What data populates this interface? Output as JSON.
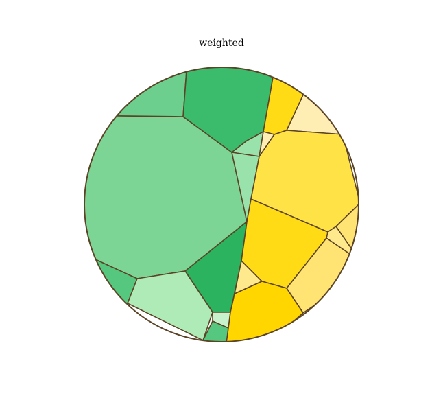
{
  "title": "weighted",
  "colors": {
    "stroke": "#5b4326",
    "green_1": "#2bb360",
    "green_2": "#3bbb6c",
    "green_3": "#56c77f",
    "green_4": "#6dcf8e",
    "green_5": "#7dd595",
    "green_6": "#9ae2ac",
    "green_7": "#aeebb6",
    "green_8": "#c8f2cb",
    "yellow_1": "#ffd600",
    "yellow_2": "#ffdb16",
    "yellow_3": "#ffe246",
    "yellow_4": "#ffe473",
    "yellow_5": "#ffe98d",
    "yellow_6": "#ffeeb4"
  },
  "cells": [
    {
      "name": "green-cell-left-large",
      "color": "green_5"
    },
    {
      "name": "green-cell-top-left",
      "color": "green_4"
    },
    {
      "name": "green-cell-top",
      "color": "green_2"
    },
    {
      "name": "green-cell-small-top",
      "color": "green_6"
    },
    {
      "name": "green-cell-center",
      "color": "green_6"
    },
    {
      "name": "green-cell-center-dark",
      "color": "green_1"
    },
    {
      "name": "green-cell-bottom-left",
      "color": "green_3"
    },
    {
      "name": "green-cell-bottom",
      "color": "green_7"
    },
    {
      "name": "green-cell-bottom-small",
      "color": "green_8"
    },
    {
      "name": "green-cell-bottom-tip",
      "color": "green_3"
    },
    {
      "name": "yellow-cell-top-small",
      "color": "yellow_2"
    },
    {
      "name": "yellow-cell-top-right",
      "color": "yellow_6"
    },
    {
      "name": "yellow-cell-tiny-top",
      "color": "yellow_6"
    },
    {
      "name": "yellow-cell-right-large",
      "color": "yellow_3"
    },
    {
      "name": "yellow-cell-right-edge",
      "color": "yellow_4"
    },
    {
      "name": "yellow-cell-right-small",
      "color": "yellow_5"
    },
    {
      "name": "yellow-cell-center",
      "color": "yellow_2"
    },
    {
      "name": "yellow-cell-bottom-right",
      "color": "yellow_4"
    },
    {
      "name": "yellow-cell-small-wedge",
      "color": "yellow_5"
    },
    {
      "name": "yellow-cell-bottom",
      "color": "yellow_1"
    }
  ]
}
